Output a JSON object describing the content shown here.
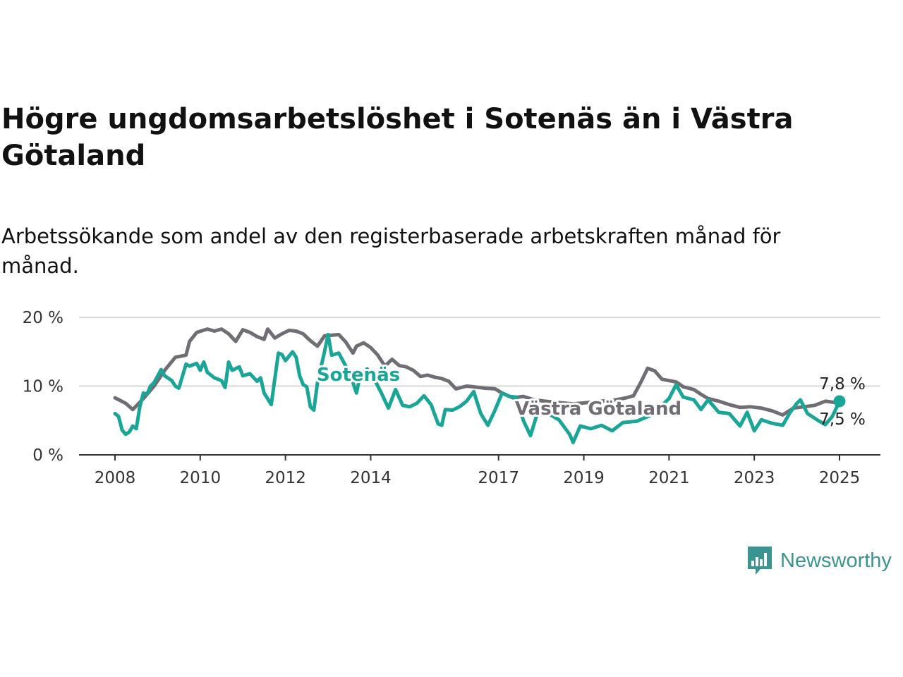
{
  "title": "Högre ungdomsarbetslöshet i Sotenäs än i Västra Götaland",
  "subtitle": "Arbetssökande som andel av den registerbaserade arbetskraften månad för månad.",
  "brand": {
    "name": "Newsworthy",
    "icon": "newsworthy-logo-icon",
    "color": "#3a9590"
  },
  "chart_data": {
    "type": "line",
    "title": "Högre ungdomsarbetslöshet i Sotenäs än i Västra Götaland",
    "subtitle": "Arbetssökande som andel av den registerbaserade arbetskraften månad för månad.",
    "xlabel": "",
    "ylabel": "",
    "xlim": [
      "2008-01",
      "2025-01"
    ],
    "ylim": [
      0,
      20
    ],
    "x_ticks": [
      {
        "value": "2008-01",
        "label": "2008"
      },
      {
        "value": "2010-01",
        "label": "2010"
      },
      {
        "value": "2012-01",
        "label": "2012"
      },
      {
        "value": "2014-01",
        "label": "2014"
      },
      {
        "value": "2017-01",
        "label": "2017"
      },
      {
        "value": "2019-01",
        "label": "2019"
      },
      {
        "value": "2021-01",
        "label": "2021"
      },
      {
        "value": "2023-01",
        "label": "2023"
      },
      {
        "value": "2025-01",
        "label": "2025"
      }
    ],
    "y_ticks": [
      {
        "value": 0,
        "label": "0 %"
      },
      {
        "value": 10,
        "label": "10 %"
      },
      {
        "value": 20,
        "label": "20 %"
      }
    ],
    "grid": "horizontal",
    "legend": "inline labels",
    "series": [
      {
        "name": "Västra Götaland",
        "color": "#706d74",
        "end_label": "7,5 %",
        "points": [
          [
            "2008-01",
            8.3
          ],
          [
            "2008-04",
            7.5
          ],
          [
            "2008-06",
            6.6
          ],
          [
            "2008-09",
            8.2
          ],
          [
            "2008-12",
            10.0
          ],
          [
            "2009-03",
            12.3
          ],
          [
            "2009-06",
            14.2
          ],
          [
            "2009-09",
            14.5
          ],
          [
            "2009-10",
            16.5
          ],
          [
            "2009-12",
            17.8
          ],
          [
            "2010-03",
            18.3
          ],
          [
            "2010-05",
            18.0
          ],
          [
            "2010-07",
            18.3
          ],
          [
            "2010-09",
            17.6
          ],
          [
            "2010-11",
            16.5
          ],
          [
            "2011-01",
            18.2
          ],
          [
            "2011-03",
            17.8
          ],
          [
            "2011-05",
            17.2
          ],
          [
            "2011-07",
            16.8
          ],
          [
            "2011-08",
            18.3
          ],
          [
            "2011-10",
            17.0
          ],
          [
            "2011-12",
            17.6
          ],
          [
            "2012-02",
            18.1
          ],
          [
            "2012-04",
            18.0
          ],
          [
            "2012-06",
            17.6
          ],
          [
            "2012-08",
            16.6
          ],
          [
            "2012-10",
            15.8
          ],
          [
            "2012-12",
            17.3
          ],
          [
            "2013-02",
            17.4
          ],
          [
            "2013-04",
            17.5
          ],
          [
            "2013-06",
            16.4
          ],
          [
            "2013-08",
            14.8
          ],
          [
            "2013-09",
            15.8
          ],
          [
            "2013-11",
            16.3
          ],
          [
            "2014-01",
            15.6
          ],
          [
            "2014-03",
            14.5
          ],
          [
            "2014-05",
            12.9
          ],
          [
            "2014-07",
            13.9
          ],
          [
            "2014-09",
            13.0
          ],
          [
            "2014-11",
            12.8
          ],
          [
            "2015-01",
            12.3
          ],
          [
            "2015-03",
            11.4
          ],
          [
            "2015-05",
            11.6
          ],
          [
            "2015-07",
            11.3
          ],
          [
            "2015-09",
            11.1
          ],
          [
            "2015-11",
            10.7
          ],
          [
            "2016-01",
            9.6
          ],
          [
            "2016-04",
            10.0
          ],
          [
            "2016-06",
            9.9
          ],
          [
            "2016-09",
            9.7
          ],
          [
            "2016-12",
            9.6
          ],
          [
            "2017-02",
            9.0
          ],
          [
            "2017-05",
            8.3
          ],
          [
            "2017-08",
            8.5
          ],
          [
            "2017-11",
            8.0
          ],
          [
            "2018-02",
            7.8
          ],
          [
            "2018-06",
            7.6
          ],
          [
            "2018-10",
            7.4
          ],
          [
            "2019-02",
            7.6
          ],
          [
            "2019-06",
            7.8
          ],
          [
            "2019-10",
            8.0
          ],
          [
            "2020-01",
            8.3
          ],
          [
            "2020-03",
            8.6
          ],
          [
            "2020-05",
            10.5
          ],
          [
            "2020-07",
            12.6
          ],
          [
            "2020-09",
            12.2
          ],
          [
            "2020-11",
            11.0
          ],
          [
            "2021-01",
            10.8
          ],
          [
            "2021-03",
            10.6
          ],
          [
            "2021-05",
            9.9
          ],
          [
            "2021-08",
            9.5
          ],
          [
            "2021-10",
            8.8
          ],
          [
            "2021-12",
            8.2
          ],
          [
            "2022-03",
            7.8
          ],
          [
            "2022-06",
            7.3
          ],
          [
            "2022-09",
            6.9
          ],
          [
            "2022-12",
            7.0
          ],
          [
            "2023-03",
            6.8
          ],
          [
            "2023-06",
            6.4
          ],
          [
            "2023-09",
            5.8
          ],
          [
            "2023-12",
            6.8
          ],
          [
            "2024-03",
            7.0
          ],
          [
            "2024-06",
            7.2
          ],
          [
            "2024-09",
            7.8
          ],
          [
            "2024-12",
            7.6
          ],
          [
            "2025-01",
            7.5
          ]
        ]
      },
      {
        "name": "Sotenäs",
        "color": "#1aa697",
        "end_label": "7,8 %",
        "points": [
          [
            "2008-01",
            6.0
          ],
          [
            "2008-02",
            5.6
          ],
          [
            "2008-03",
            3.6
          ],
          [
            "2008-04",
            3.0
          ],
          [
            "2008-05",
            3.3
          ],
          [
            "2008-06",
            4.2
          ],
          [
            "2008-07",
            3.8
          ],
          [
            "2008-08",
            7.0
          ],
          [
            "2008-09",
            9.0
          ],
          [
            "2008-10",
            8.8
          ],
          [
            "2008-11",
            10.0
          ],
          [
            "2008-12",
            10.5
          ],
          [
            "2009-02",
            12.4
          ],
          [
            "2009-03",
            11.5
          ],
          [
            "2009-05",
            10.8
          ],
          [
            "2009-06",
            10.0
          ],
          [
            "2009-07",
            9.7
          ],
          [
            "2009-09",
            13.2
          ],
          [
            "2009-10",
            12.9
          ],
          [
            "2009-12",
            13.3
          ],
          [
            "2010-01",
            12.3
          ],
          [
            "2010-02",
            13.5
          ],
          [
            "2010-03",
            12.0
          ],
          [
            "2010-05",
            11.2
          ],
          [
            "2010-07",
            10.8
          ],
          [
            "2010-08",
            9.8
          ],
          [
            "2010-09",
            13.5
          ],
          [
            "2010-10",
            12.3
          ],
          [
            "2010-12",
            12.8
          ],
          [
            "2011-01",
            11.5
          ],
          [
            "2011-03",
            11.8
          ],
          [
            "2011-05",
            10.7
          ],
          [
            "2011-06",
            11.2
          ],
          [
            "2011-07",
            9.0
          ],
          [
            "2011-09",
            7.3
          ],
          [
            "2011-11",
            14.8
          ],
          [
            "2011-12",
            14.6
          ],
          [
            "2012-01",
            13.7
          ],
          [
            "2012-03",
            15.0
          ],
          [
            "2012-04",
            14.2
          ],
          [
            "2012-05",
            11.5
          ],
          [
            "2012-06",
            10.2
          ],
          [
            "2012-07",
            9.9
          ],
          [
            "2012-08",
            7.0
          ],
          [
            "2012-09",
            6.5
          ],
          [
            "2012-10",
            10.5
          ],
          [
            "2012-12",
            15.0
          ],
          [
            "2013-01",
            17.5
          ],
          [
            "2013-02",
            14.5
          ],
          [
            "2013-04",
            14.8
          ],
          [
            "2013-06",
            12.9
          ],
          [
            "2013-08",
            10.5
          ],
          [
            "2013-09",
            9.0
          ],
          [
            "2013-10",
            11.5
          ],
          [
            "2013-12",
            12.5
          ],
          [
            "2014-02",
            11.0
          ],
          [
            "2014-04",
            9.0
          ],
          [
            "2014-06",
            6.8
          ],
          [
            "2014-08",
            9.5
          ],
          [
            "2014-10",
            7.2
          ],
          [
            "2014-12",
            7.0
          ],
          [
            "2015-02",
            7.5
          ],
          [
            "2015-04",
            8.6
          ],
          [
            "2015-06",
            7.3
          ],
          [
            "2015-08",
            4.5
          ],
          [
            "2015-09",
            4.3
          ],
          [
            "2015-10",
            6.6
          ],
          [
            "2015-12",
            6.5
          ],
          [
            "2016-02",
            7.0
          ],
          [
            "2016-04",
            7.8
          ],
          [
            "2016-06",
            9.2
          ],
          [
            "2016-08",
            6.0
          ],
          [
            "2016-10",
            4.3
          ],
          [
            "2016-12",
            6.5
          ],
          [
            "2017-02",
            9.0
          ],
          [
            "2017-04",
            8.5
          ],
          [
            "2017-06",
            8.4
          ],
          [
            "2017-08",
            5.0
          ],
          [
            "2017-10",
            2.8
          ],
          [
            "2017-12",
            6.2
          ],
          [
            "2018-03",
            6.0
          ],
          [
            "2018-06",
            5.1
          ],
          [
            "2018-09",
            3.0
          ],
          [
            "2018-10",
            1.8
          ],
          [
            "2018-12",
            4.2
          ],
          [
            "2019-03",
            3.8
          ],
          [
            "2019-06",
            4.3
          ],
          [
            "2019-09",
            3.5
          ],
          [
            "2019-12",
            4.7
          ],
          [
            "2020-04",
            4.9
          ],
          [
            "2020-08",
            5.8
          ],
          [
            "2020-11",
            7.2
          ],
          [
            "2021-01",
            8.2
          ],
          [
            "2021-03",
            10.2
          ],
          [
            "2021-05",
            8.4
          ],
          [
            "2021-08",
            8.0
          ],
          [
            "2021-10",
            6.6
          ],
          [
            "2021-12",
            8.0
          ],
          [
            "2022-03",
            6.2
          ],
          [
            "2022-06",
            6.0
          ],
          [
            "2022-09",
            4.2
          ],
          [
            "2022-11",
            6.2
          ],
          [
            "2023-01",
            3.5
          ],
          [
            "2023-03",
            5.1
          ],
          [
            "2023-06",
            4.6
          ],
          [
            "2023-09",
            4.3
          ],
          [
            "2023-11",
            6.1
          ],
          [
            "2024-01",
            7.5
          ],
          [
            "2024-02",
            8.0
          ],
          [
            "2024-04",
            6.0
          ],
          [
            "2024-07",
            5.0
          ],
          [
            "2024-09",
            4.4
          ],
          [
            "2024-11",
            5.6
          ],
          [
            "2025-01",
            7.8
          ]
        ]
      }
    ]
  }
}
